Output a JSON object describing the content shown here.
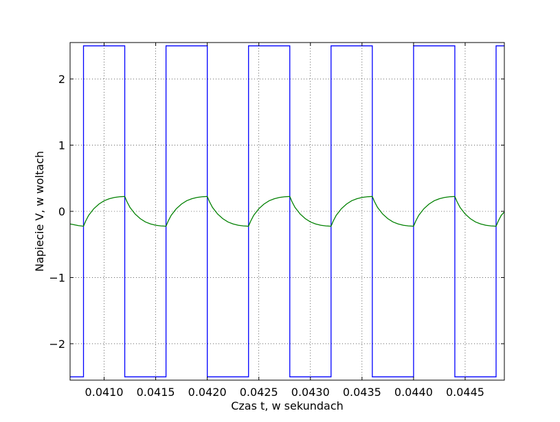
{
  "chart_data": {
    "type": "line",
    "title": "",
    "xlabel": "Czas t, w sekundach",
    "ylabel": "Napiecie V, w woltach",
    "xlim": [
      0.04067,
      0.04488
    ],
    "ylim": [
      -2.55,
      2.55
    ],
    "grid": true,
    "x_ticks": [
      0.041,
      0.0415,
      0.042,
      0.0425,
      0.043,
      0.0435,
      0.044,
      0.0445
    ],
    "x_tick_labels": [
      "0.0410",
      "0.0415",
      "0.0420",
      "0.0425",
      "0.0430",
      "0.0435",
      "0.0440",
      "0.0445"
    ],
    "y_ticks": [
      -2,
      -1,
      0,
      1,
      2
    ],
    "y_tick_labels": [
      "−2",
      "−1",
      "0",
      "1",
      "2"
    ],
    "series": [
      {
        "color": "#0000ff",
        "x": [
          0.04067,
          0.0408,
          0.0408,
          0.0412,
          0.0412,
          0.0416,
          0.0416,
          0.042,
          0.042,
          0.0424,
          0.0424,
          0.0428,
          0.0428,
          0.0432,
          0.0432,
          0.0436,
          0.0436,
          0.044,
          0.044,
          0.0444,
          0.0444,
          0.0448,
          0.0448,
          0.04488
        ],
        "y": [
          -2.5,
          -2.5,
          2.5,
          2.5,
          -2.5,
          -2.5,
          2.5,
          2.5,
          -2.5,
          -2.5,
          2.5,
          2.5,
          -2.5,
          -2.5,
          2.5,
          2.5,
          -2.5,
          -2.5,
          2.5,
          2.5,
          -2.5,
          -2.5,
          2.5,
          2.5
        ]
      },
      {
        "color": "#008000",
        "x": [
          0.04067,
          0.0407,
          0.04075,
          0.0408,
          0.04082,
          0.04085,
          0.0409,
          0.04095,
          0.041,
          0.04105,
          0.0411,
          0.04115,
          0.0412,
          0.04122,
          0.04125,
          0.0413,
          0.04135,
          0.0414,
          0.04145,
          0.0415,
          0.04155,
          0.0416,
          0.04162,
          0.04165,
          0.0417,
          0.04175,
          0.0418,
          0.04185,
          0.0419,
          0.04195,
          0.042,
          0.04202,
          0.04205,
          0.0421,
          0.04215,
          0.0422,
          0.04225,
          0.0423,
          0.04235,
          0.0424,
          0.04242,
          0.04245,
          0.0425,
          0.04255,
          0.0426,
          0.04265,
          0.0427,
          0.04275,
          0.0428,
          0.04282,
          0.04285,
          0.0429,
          0.04295,
          0.043,
          0.04305,
          0.0431,
          0.04315,
          0.0432,
          0.04322,
          0.04325,
          0.0433,
          0.04335,
          0.0434,
          0.04345,
          0.0435,
          0.04355,
          0.0436,
          0.04362,
          0.04365,
          0.0437,
          0.04375,
          0.0438,
          0.04385,
          0.0439,
          0.04395,
          0.044,
          0.04402,
          0.04405,
          0.0441,
          0.04415,
          0.0442,
          0.04425,
          0.0443,
          0.04435,
          0.0444,
          0.04442,
          0.04445,
          0.0445,
          0.04455,
          0.0446,
          0.04465,
          0.0447,
          0.04475,
          0.0448,
          0.04482,
          0.04485,
          0.04488
        ],
        "y": [
          -0.19,
          -0.2,
          -0.215,
          -0.225,
          -0.15,
          -0.06,
          0.04,
          0.11,
          0.16,
          0.19,
          0.21,
          0.22,
          0.225,
          0.15,
          0.06,
          -0.04,
          -0.11,
          -0.16,
          -0.19,
          -0.21,
          -0.22,
          -0.225,
          -0.15,
          -0.06,
          0.04,
          0.11,
          0.16,
          0.19,
          0.21,
          0.22,
          0.225,
          0.15,
          0.06,
          -0.04,
          -0.11,
          -0.16,
          -0.19,
          -0.21,
          -0.22,
          -0.225,
          -0.15,
          -0.06,
          0.04,
          0.11,
          0.16,
          0.19,
          0.21,
          0.22,
          0.225,
          0.15,
          0.06,
          -0.04,
          -0.11,
          -0.16,
          -0.19,
          -0.21,
          -0.22,
          -0.225,
          -0.15,
          -0.06,
          0.04,
          0.11,
          0.16,
          0.19,
          0.21,
          0.22,
          0.225,
          0.15,
          0.06,
          -0.04,
          -0.11,
          -0.16,
          -0.19,
          -0.21,
          -0.22,
          -0.225,
          -0.15,
          -0.06,
          0.04,
          0.11,
          0.16,
          0.19,
          0.21,
          0.22,
          0.225,
          0.15,
          0.06,
          -0.04,
          -0.11,
          -0.16,
          -0.19,
          -0.21,
          -0.22,
          -0.225,
          -0.15,
          -0.06,
          -0.01
        ]
      }
    ]
  }
}
